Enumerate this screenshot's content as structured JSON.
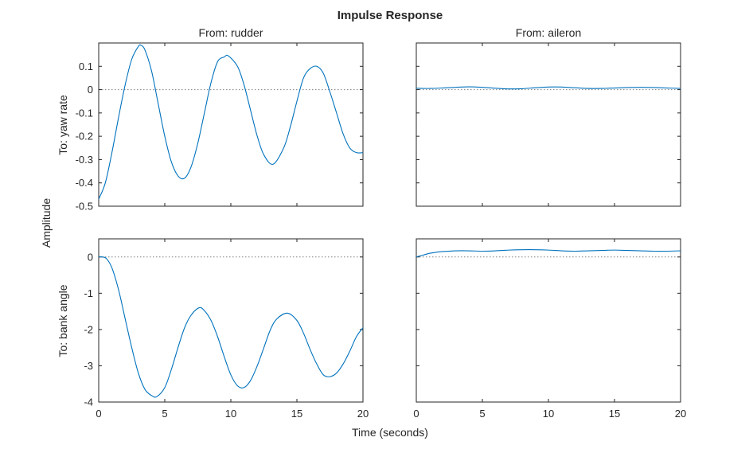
{
  "figure": {
    "title": "Impulse Response",
    "xlabel": "Time (seconds)",
    "ylabel": "Amplitude",
    "column_titles": [
      "From: rudder",
      "From: aileron"
    ],
    "row_titles": [
      "To: yaw rate",
      "To: bank angle"
    ]
  },
  "style": {
    "line_color": "#0072bd",
    "axis_color": "#262626",
    "zero_line_color": "#7f7f7f"
  },
  "chart_data": [
    {
      "type": "line",
      "input": "rudder",
      "output": "yaw rate",
      "xlim": [
        0,
        20
      ],
      "ylim": [
        -0.5,
        0.2
      ],
      "xticks": [
        0,
        5,
        10,
        15,
        20
      ],
      "yticks": [
        -0.5,
        -0.4,
        -0.3,
        -0.2,
        -0.1,
        0,
        0.1
      ],
      "ytick_labels": [
        "-0.5",
        "-0.4",
        "-0.3",
        "-0.2",
        "-0.1",
        "0",
        "0.1"
      ],
      "show_xtick_labels": false,
      "show_ytick_labels": true,
      "x": [
        0,
        0.5,
        1,
        1.5,
        2,
        2.5,
        3,
        3.2,
        3.5,
        4,
        4.5,
        5,
        5.5,
        6,
        6.5,
        7,
        7.5,
        8,
        8.5,
        9,
        9.5,
        9.8,
        10.5,
        11,
        11.5,
        12,
        12.5,
        13.2,
        14,
        14.5,
        15,
        15.5,
        16,
        16.5,
        17,
        17.5,
        18,
        18.5,
        19,
        19.5,
        20
      ],
      "y": [
        -0.47,
        -0.4,
        -0.27,
        -0.12,
        0.02,
        0.13,
        0.185,
        0.19,
        0.17,
        0.08,
        -0.06,
        -0.2,
        -0.31,
        -0.37,
        -0.38,
        -0.33,
        -0.23,
        -0.1,
        0.03,
        0.12,
        0.14,
        0.145,
        0.1,
        0.02,
        -0.09,
        -0.2,
        -0.28,
        -0.32,
        -0.25,
        -0.16,
        -0.05,
        0.05,
        0.09,
        0.1,
        0.07,
        -0.01,
        -0.1,
        -0.19,
        -0.25,
        -0.27,
        -0.27
      ]
    },
    {
      "type": "line",
      "input": "aileron",
      "output": "yaw rate",
      "xlim": [
        0,
        20
      ],
      "ylim": [
        -0.5,
        0.2
      ],
      "xticks": [
        0,
        5,
        10,
        15,
        20
      ],
      "yticks": [
        -0.5,
        -0.4,
        -0.3,
        -0.2,
        -0.1,
        0,
        0.1
      ],
      "show_xtick_labels": false,
      "show_ytick_labels": false,
      "x": [
        0,
        1,
        2,
        3,
        4,
        5,
        6,
        7,
        8,
        9,
        10,
        11,
        12,
        13,
        14,
        15,
        16,
        17,
        18,
        19,
        20
      ],
      "y": [
        0.006,
        0.005,
        0.007,
        0.01,
        0.012,
        0.01,
        0.006,
        0.003,
        0.004,
        0.008,
        0.011,
        0.011,
        0.008,
        0.005,
        0.005,
        0.007,
        0.009,
        0.01,
        0.009,
        0.007,
        0.005
      ]
    },
    {
      "type": "line",
      "input": "rudder",
      "output": "bank angle",
      "xlim": [
        0,
        20
      ],
      "ylim": [
        -4,
        0.5
      ],
      "xticks": [
        0,
        5,
        10,
        15,
        20
      ],
      "yticks": [
        -4,
        -3,
        -2,
        -1,
        0
      ],
      "ytick_labels": [
        "-4",
        "-3",
        "-2",
        "-1",
        "0"
      ],
      "xtick_labels": [
        "0",
        "5",
        "10",
        "15",
        "20"
      ],
      "show_xtick_labels": true,
      "show_ytick_labels": true,
      "x": [
        0,
        0.3,
        0.6,
        1,
        1.5,
        2,
        2.5,
        3,
        3.5,
        4,
        4.4,
        5,
        5.5,
        6,
        6.5,
        7,
        7.6,
        8,
        8.5,
        9,
        9.5,
        10,
        10.5,
        11,
        11.5,
        12,
        12.5,
        13,
        13.5,
        14.3,
        15,
        15.5,
        16,
        16.5,
        17,
        17.5,
        18,
        18.5,
        19,
        19.5,
        20
      ],
      "y": [
        0,
        0,
        -0.05,
        -0.3,
        -0.9,
        -1.7,
        -2.5,
        -3.2,
        -3.65,
        -3.82,
        -3.85,
        -3.6,
        -3.1,
        -2.5,
        -1.95,
        -1.6,
        -1.4,
        -1.48,
        -1.75,
        -2.2,
        -2.75,
        -3.25,
        -3.55,
        -3.6,
        -3.4,
        -3.0,
        -2.5,
        -2.0,
        -1.7,
        -1.55,
        -1.75,
        -2.1,
        -2.55,
        -2.95,
        -3.25,
        -3.3,
        -3.2,
        -2.95,
        -2.6,
        -2.2,
        -1.95
      ]
    },
    {
      "type": "line",
      "input": "aileron",
      "output": "bank angle",
      "xlim": [
        0,
        20
      ],
      "ylim": [
        -4,
        0.5
      ],
      "xticks": [
        0,
        5,
        10,
        15,
        20
      ],
      "yticks": [
        -4,
        -3,
        -2,
        -1,
        0
      ],
      "xtick_labels": [
        "0",
        "5",
        "10",
        "15",
        "20"
      ],
      "show_xtick_labels": true,
      "show_ytick_labels": false,
      "x": [
        0,
        0.5,
        1,
        1.5,
        2,
        3,
        4,
        5,
        6,
        7,
        8,
        9,
        10,
        11,
        12,
        13,
        14,
        15,
        16,
        17,
        18,
        19,
        20
      ],
      "y": [
        0,
        0.05,
        0.1,
        0.13,
        0.15,
        0.17,
        0.17,
        0.16,
        0.17,
        0.19,
        0.2,
        0.2,
        0.19,
        0.17,
        0.16,
        0.17,
        0.18,
        0.19,
        0.18,
        0.17,
        0.16,
        0.16,
        0.17
      ]
    }
  ]
}
